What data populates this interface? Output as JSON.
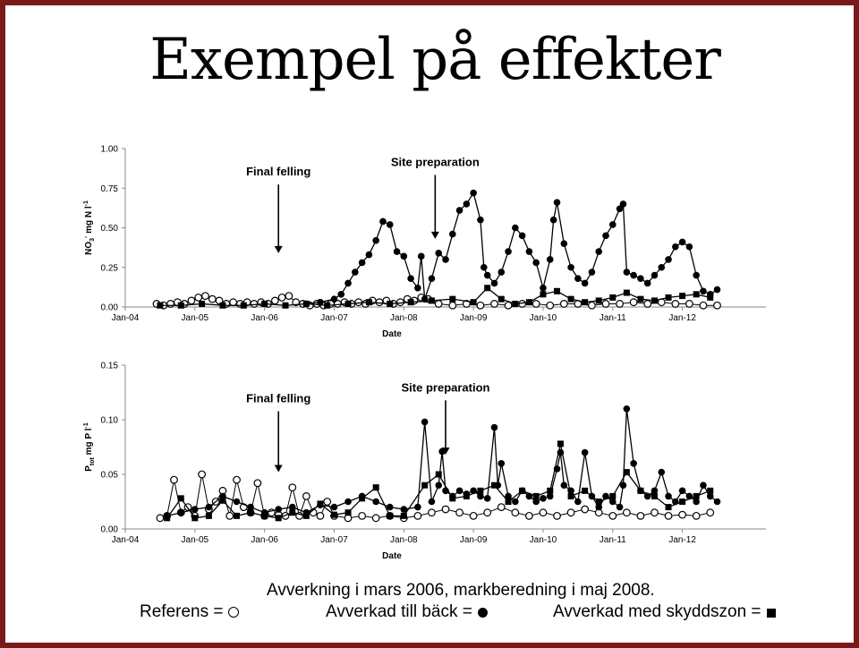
{
  "slide": {
    "title": "Exempel på effekter",
    "caption": "Avverkning i mars 2006, markberedning i maj 2008.",
    "legend": [
      {
        "label": "Referens =",
        "symbol": "open-circle-icon"
      },
      {
        "label": "Avverkad till bäck =",
        "symbol": "filled-circle-icon"
      },
      {
        "label": "Avverkad med skyddszon =",
        "symbol": "filled-square-icon"
      }
    ],
    "colors": {
      "border": "#7a1a1a",
      "marks": "#000000"
    }
  },
  "chart_data": [
    {
      "type": "scatter",
      "ylabel": "NO3- mg N l-1",
      "ylabel_main": "NO",
      "ylabel_sub": "3",
      "ylabel_sup": "-",
      "ylabel_rest": " mg N l",
      "ylabel_sup2": "-1",
      "xlabel": "Date",
      "xlim": [
        2004.0,
        2013.2
      ],
      "ylim": [
        0,
        1.0
      ],
      "x_ticks": [
        {
          "x": 2004.0,
          "label": "Jan-04"
        },
        {
          "x": 2005.0,
          "label": "Jan-05"
        },
        {
          "x": 2006.0,
          "label": "Jan-06"
        },
        {
          "x": 2007.0,
          "label": "Jan-07"
        },
        {
          "x": 2008.0,
          "label": "Jan-08"
        },
        {
          "x": 2009.0,
          "label": "Jan-09"
        },
        {
          "x": 2010.0,
          "label": "Jan-10"
        },
        {
          "x": 2011.0,
          "label": "Jan-11"
        },
        {
          "x": 2012.0,
          "label": "Jan-12"
        }
      ],
      "y_ticks": [
        {
          "y": 0.0,
          "label": "0.00"
        },
        {
          "y": 0.25,
          "label": "0.25"
        },
        {
          "y": 0.5,
          "label": "0.50"
        },
        {
          "y": 0.75,
          "label": "0.75"
        },
        {
          "y": 1.0,
          "label": "1.00"
        }
      ],
      "annotations": [
        {
          "text": "Final felling",
          "x": 2006.2,
          "y_text": 0.83,
          "y_arrow_end": 0.34
        },
        {
          "text": "Site preparation",
          "x": 2008.45,
          "y_text": 0.89,
          "y_arrow_end": 0.43
        }
      ],
      "series": [
        {
          "symbol": "open-circle",
          "x": [
            2004.45,
            2004.55,
            2004.65,
            2004.75,
            2004.85,
            2004.95,
            2005.05,
            2005.15,
            2005.25,
            2005.35,
            2005.45,
            2005.55,
            2005.65,
            2005.75,
            2005.85,
            2005.95,
            2006.05,
            2006.15,
            2006.25,
            2006.35,
            2006.45,
            2006.55,
            2006.65,
            2006.75,
            2006.85,
            2006.95,
            2007.05,
            2007.15,
            2007.25,
            2007.35,
            2007.45,
            2007.55,
            2007.65,
            2007.75,
            2007.85,
            2007.95,
            2008.05,
            2008.15,
            2008.25,
            2008.35,
            2008.5,
            2008.7,
            2008.9,
            2009.1,
            2009.3,
            2009.5,
            2009.7,
            2009.9,
            2010.1,
            2010.3,
            2010.5,
            2010.7,
            2010.9,
            2011.1,
            2011.3,
            2011.5,
            2011.7,
            2011.9,
            2012.1,
            2012.3,
            2012.5
          ],
          "y": [
            0.02,
            0.01,
            0.02,
            0.03,
            0.02,
            0.04,
            0.06,
            0.07,
            0.05,
            0.04,
            0.02,
            0.03,
            0.02,
            0.03,
            0.02,
            0.03,
            0.02,
            0.04,
            0.06,
            0.07,
            0.03,
            0.02,
            0.01,
            0.02,
            0.01,
            0.02,
            0.02,
            0.03,
            0.02,
            0.03,
            0.02,
            0.04,
            0.03,
            0.04,
            0.02,
            0.03,
            0.05,
            0.04,
            0.06,
            0.05,
            0.02,
            0.01,
            0.02,
            0.01,
            0.02,
            0.01,
            0.02,
            0.02,
            0.01,
            0.02,
            0.02,
            0.01,
            0.02,
            0.02,
            0.03,
            0.02,
            0.03,
            0.02,
            0.02,
            0.01,
            0.01
          ]
        },
        {
          "symbol": "filled-circle",
          "x": [
            2006.6,
            2006.8,
            2007.0,
            2007.1,
            2007.2,
            2007.3,
            2007.4,
            2007.5,
            2007.6,
            2007.7,
            2007.8,
            2007.9,
            2008.0,
            2008.1,
            2008.2,
            2008.25,
            2008.3,
            2008.4,
            2008.5,
            2008.6,
            2008.7,
            2008.8,
            2008.9,
            2009.0,
            2009.1,
            2009.15,
            2009.2,
            2009.3,
            2009.4,
            2009.5,
            2009.6,
            2009.7,
            2009.8,
            2009.9,
            2010.0,
            2010.1,
            2010.15,
            2010.2,
            2010.3,
            2010.4,
            2010.5,
            2010.6,
            2010.7,
            2010.8,
            2010.9,
            2011.0,
            2011.1,
            2011.15,
            2011.2,
            2011.3,
            2011.4,
            2011.5,
            2011.6,
            2011.7,
            2011.8,
            2011.9,
            2012.0,
            2012.1,
            2012.2,
            2012.3,
            2012.4,
            2012.5
          ],
          "y": [
            0.02,
            0.03,
            0.05,
            0.08,
            0.15,
            0.22,
            0.28,
            0.33,
            0.42,
            0.54,
            0.52,
            0.35,
            0.32,
            0.18,
            0.12,
            0.32,
            0.05,
            0.18,
            0.34,
            0.3,
            0.46,
            0.61,
            0.65,
            0.72,
            0.55,
            0.25,
            0.2,
            0.15,
            0.22,
            0.35,
            0.5,
            0.45,
            0.35,
            0.28,
            0.12,
            0.3,
            0.55,
            0.66,
            0.4,
            0.25,
            0.18,
            0.15,
            0.22,
            0.35,
            0.45,
            0.52,
            0.62,
            0.65,
            0.22,
            0.2,
            0.18,
            0.15,
            0.2,
            0.25,
            0.3,
            0.38,
            0.41,
            0.38,
            0.2,
            0.1,
            0.08,
            0.11
          ]
        },
        {
          "symbol": "filled-square",
          "x": [
            2004.5,
            2004.8,
            2005.1,
            2005.4,
            2005.7,
            2006.0,
            2006.3,
            2006.6,
            2006.9,
            2007.2,
            2007.5,
            2007.8,
            2008.1,
            2008.4,
            2008.7,
            2009.0,
            2009.2,
            2009.4,
            2009.6,
            2009.8,
            2010.0,
            2010.2,
            2010.4,
            2010.6,
            2010.8,
            2011.0,
            2011.2,
            2011.4,
            2011.6,
            2011.8,
            2012.0,
            2012.2,
            2012.4
          ],
          "y": [
            0.01,
            0.01,
            0.02,
            0.01,
            0.01,
            0.02,
            0.01,
            0.02,
            0.01,
            0.02,
            0.03,
            0.02,
            0.03,
            0.04,
            0.05,
            0.03,
            0.12,
            0.05,
            0.02,
            0.03,
            0.08,
            0.1,
            0.05,
            0.03,
            0.04,
            0.06,
            0.09,
            0.05,
            0.04,
            0.06,
            0.07,
            0.08,
            0.06
          ]
        }
      ]
    },
    {
      "type": "scatter",
      "ylabel": "Ptot mg P l-1",
      "ylabel_main": "P",
      "ylabel_sub": "tot",
      "ylabel_sup": "",
      "ylabel_rest": " mg P l",
      "ylabel_sup2": "-1",
      "xlabel": "Date",
      "xlim": [
        2004.0,
        2013.2
      ],
      "ylim": [
        0,
        0.15
      ],
      "x_ticks": [
        {
          "x": 2004.0,
          "label": "Jan-04"
        },
        {
          "x": 2005.0,
          "label": "Jan-05"
        },
        {
          "x": 2006.0,
          "label": "Jan-06"
        },
        {
          "x": 2007.0,
          "label": "Jan-07"
        },
        {
          "x": 2008.0,
          "label": "Jan-08"
        },
        {
          "x": 2009.0,
          "label": "Jan-09"
        },
        {
          "x": 2010.0,
          "label": "Jan-10"
        },
        {
          "x": 2011.0,
          "label": "Jan-11"
        },
        {
          "x": 2012.0,
          "label": "Jan-12"
        }
      ],
      "y_ticks": [
        {
          "y": 0.0,
          "label": "0.00"
        },
        {
          "y": 0.05,
          "label": "0.05"
        },
        {
          "y": 0.1,
          "label": "0.10"
        },
        {
          "y": 0.15,
          "label": "0.15"
        }
      ],
      "annotations": [
        {
          "text": "Final felling",
          "x": 2006.2,
          "y_text": 0.116,
          "y_arrow_end": 0.052
        },
        {
          "text": "Site preparation",
          "x": 2008.6,
          "y_text": 0.126,
          "y_arrow_end": 0.068
        }
      ],
      "series": [
        {
          "symbol": "open-circle",
          "x": [
            2004.5,
            2004.6,
            2004.7,
            2004.8,
            2004.9,
            2005.0,
            2005.1,
            2005.2,
            2005.3,
            2005.4,
            2005.5,
            2005.6,
            2005.7,
            2005.8,
            2005.9,
            2006.0,
            2006.1,
            2006.2,
            2006.3,
            2006.4,
            2006.5,
            2006.6,
            2006.7,
            2006.8,
            2006.9,
            2007.0,
            2007.2,
            2007.4,
            2007.6,
            2007.8,
            2008.0,
            2008.2,
            2008.4,
            2008.6,
            2008.8,
            2009.0,
            2009.2,
            2009.4,
            2009.6,
            2009.8,
            2010.0,
            2010.2,
            2010.4,
            2010.6,
            2010.8,
            2011.0,
            2011.2,
            2011.4,
            2011.6,
            2011.8,
            2012.0,
            2012.2,
            2012.4
          ],
          "y": [
            0.01,
            0.012,
            0.045,
            0.015,
            0.02,
            0.012,
            0.05,
            0.018,
            0.025,
            0.035,
            0.012,
            0.045,
            0.02,
            0.015,
            0.042,
            0.012,
            0.015,
            0.013,
            0.012,
            0.038,
            0.012,
            0.03,
            0.015,
            0.012,
            0.025,
            0.012,
            0.01,
            0.012,
            0.01,
            0.012,
            0.01,
            0.012,
            0.015,
            0.018,
            0.015,
            0.012,
            0.015,
            0.02,
            0.015,
            0.012,
            0.015,
            0.012,
            0.015,
            0.018,
            0.015,
            0.012,
            0.015,
            0.012,
            0.015,
            0.012,
            0.013,
            0.012,
            0.015
          ]
        },
        {
          "symbol": "filled-circle",
          "x": [
            2004.6,
            2004.8,
            2005.0,
            2005.2,
            2005.4,
            2005.6,
            2005.8,
            2006.0,
            2006.2,
            2006.4,
            2006.6,
            2006.8,
            2007.0,
            2007.2,
            2007.4,
            2007.6,
            2007.8,
            2008.0,
            2008.2,
            2008.3,
            2008.4,
            2008.5,
            2008.55,
            2008.6,
            2008.7,
            2008.8,
            2008.9,
            2009.0,
            2009.1,
            2009.2,
            2009.3,
            2009.35,
            2009.4,
            2009.5,
            2009.6,
            2009.7,
            2009.8,
            2009.9,
            2010.0,
            2010.1,
            2010.2,
            2010.25,
            2010.3,
            2010.4,
            2010.5,
            2010.6,
            2010.7,
            2010.8,
            2010.9,
            2011.0,
            2011.1,
            2011.15,
            2011.2,
            2011.3,
            2011.4,
            2011.5,
            2011.6,
            2011.7,
            2011.8,
            2011.9,
            2012.0,
            2012.1,
            2012.2,
            2012.3,
            2012.4,
            2012.5
          ],
          "y": [
            0.012,
            0.015,
            0.018,
            0.02,
            0.03,
            0.025,
            0.02,
            0.015,
            0.018,
            0.02,
            0.015,
            0.022,
            0.02,
            0.025,
            0.03,
            0.025,
            0.02,
            0.018,
            0.02,
            0.098,
            0.025,
            0.04,
            0.071,
            0.035,
            0.03,
            0.035,
            0.032,
            0.035,
            0.03,
            0.028,
            0.093,
            0.04,
            0.06,
            0.03,
            0.025,
            0.035,
            0.03,
            0.025,
            0.028,
            0.03,
            0.055,
            0.07,
            0.04,
            0.035,
            0.025,
            0.07,
            0.03,
            0.02,
            0.03,
            0.025,
            0.02,
            0.04,
            0.11,
            0.06,
            0.035,
            0.03,
            0.035,
            0.052,
            0.03,
            0.025,
            0.035,
            0.03,
            0.025,
            0.04,
            0.03,
            0.025
          ]
        },
        {
          "symbol": "filled-square",
          "x": [
            2004.6,
            2004.8,
            2005.0,
            2005.2,
            2005.4,
            2005.6,
            2005.8,
            2006.0,
            2006.2,
            2006.4,
            2006.6,
            2006.8,
            2007.0,
            2007.2,
            2007.4,
            2007.6,
            2007.8,
            2008.0,
            2008.3,
            2008.5,
            2008.7,
            2008.9,
            2009.1,
            2009.3,
            2009.5,
            2009.7,
            2009.9,
            2010.1,
            2010.25,
            2010.4,
            2010.6,
            2010.8,
            2011.0,
            2011.2,
            2011.4,
            2011.6,
            2011.8,
            2012.0,
            2012.2,
            2012.4
          ],
          "y": [
            0.01,
            0.028,
            0.01,
            0.012,
            0.026,
            0.012,
            0.015,
            0.012,
            0.01,
            0.015,
            0.012,
            0.023,
            0.013,
            0.015,
            0.028,
            0.038,
            0.012,
            0.012,
            0.04,
            0.05,
            0.028,
            0.03,
            0.035,
            0.04,
            0.025,
            0.035,
            0.03,
            0.035,
            0.078,
            0.03,
            0.035,
            0.025,
            0.03,
            0.052,
            0.035,
            0.03,
            0.02,
            0.025,
            0.03,
            0.035
          ]
        }
      ]
    }
  ]
}
